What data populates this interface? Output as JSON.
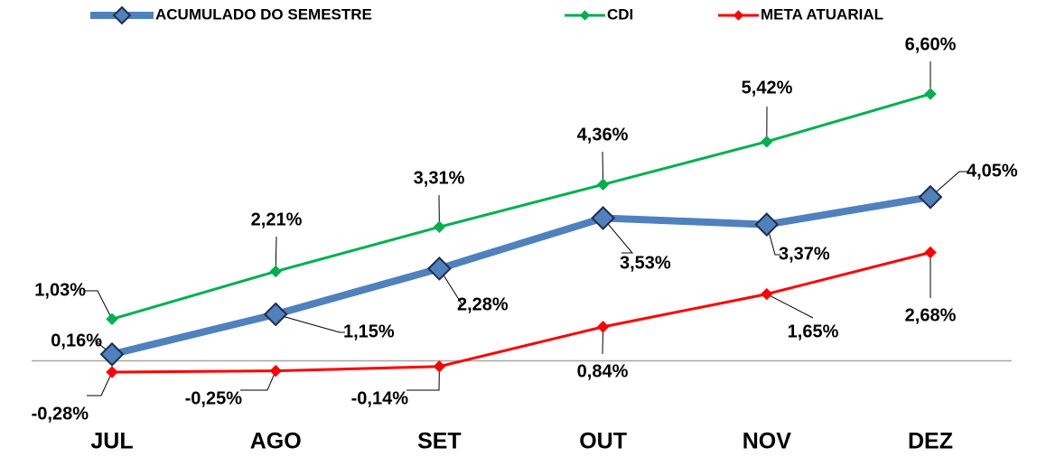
{
  "chart_data": {
    "type": "line",
    "categories": [
      "JUL",
      "AGO",
      "SET",
      "OUT",
      "NOV",
      "DEZ"
    ],
    "series": [
      {
        "name": "ACUMULADO DO SEMESTRE",
        "color": "#4f81bd",
        "values": [
          0.16,
          1.15,
          2.28,
          3.53,
          3.37,
          4.05
        ],
        "value_labels": [
          "0,16%",
          "1,15%",
          "2,28%",
          "3,53%",
          "3,37%",
          "4,05%"
        ]
      },
      {
        "name": "CDI",
        "color": "#00b050",
        "values": [
          1.03,
          2.21,
          3.31,
          4.36,
          5.42,
          6.6
        ],
        "value_labels": [
          "1,03%",
          "2,21%",
          "3,31%",
          "4,36%",
          "5,42%",
          "6,60%"
        ]
      },
      {
        "name": "META ATUARIAL",
        "color": "#ff0000",
        "values": [
          -0.28,
          -0.25,
          -0.14,
          0.84,
          1.65,
          2.68
        ],
        "value_labels": [
          "-0,28%",
          "-0,25%",
          "-0,14%",
          "0,84%",
          "1,65%",
          "2,68%"
        ]
      }
    ]
  }
}
